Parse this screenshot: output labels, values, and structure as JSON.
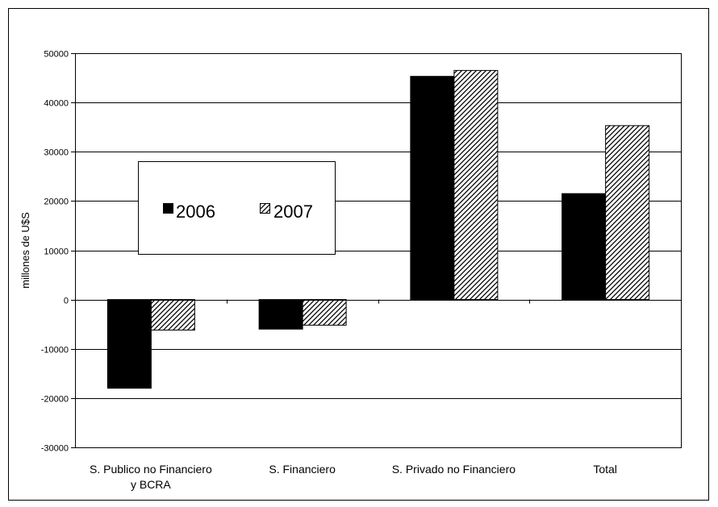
{
  "chart_data": {
    "type": "bar",
    "title": "",
    "xlabel": "",
    "ylabel": "millones de U$S",
    "ylim": [
      -30000,
      50000
    ],
    "yticks": [
      -30000,
      -20000,
      -10000,
      0,
      10000,
      20000,
      30000,
      40000,
      50000
    ],
    "ytick_labels": [
      "-30000",
      "-20000",
      "-10000",
      "0",
      "10000",
      "20000",
      "30000",
      "40000",
      "50000"
    ],
    "grid": true,
    "legend_position": "center-left",
    "categories": [
      [
        "S. Publico no Financiero",
        "y BCRA"
      ],
      [
        "S. Financiero"
      ],
      [
        "S. Privado no Financiero"
      ],
      [
        "Total"
      ]
    ],
    "series": [
      {
        "name": "2006",
        "style": "solid",
        "color": "#000000",
        "values": [
          -18000,
          -6000,
          45300,
          21500
        ]
      },
      {
        "name": "2007",
        "style": "hatched",
        "color": "#000000",
        "values": [
          -6200,
          -5200,
          46500,
          35300
        ]
      }
    ]
  }
}
